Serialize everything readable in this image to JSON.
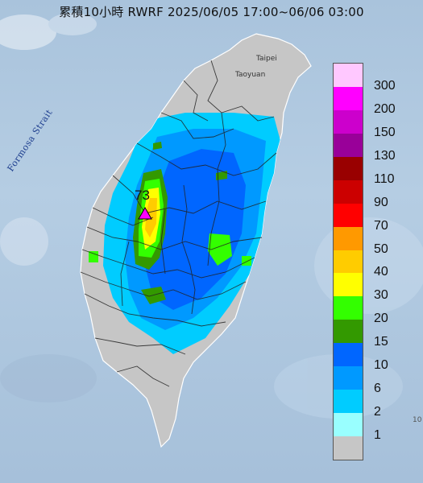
{
  "title": "累積10小時 RWRF 2025/06/05 17:00~06/06 03:00",
  "labels": {
    "strait": "Formosa Strait",
    "taipei": "Taipei",
    "taoyuan": "Taoyuan",
    "max_value": "73",
    "edge_mark": "10"
  },
  "legend": {
    "unit_levels": [
      {
        "label": "300",
        "color": "#ffc8ff"
      },
      {
        "label": "200",
        "color": "#ff00ff"
      },
      {
        "label": "150",
        "color": "#cc00cc"
      },
      {
        "label": "130",
        "color": "#990099"
      },
      {
        "label": "110",
        "color": "#990000"
      },
      {
        "label": "90",
        "color": "#cc0000"
      },
      {
        "label": "70",
        "color": "#ff0000"
      },
      {
        "label": "50",
        "color": "#ff9900"
      },
      {
        "label": "40",
        "color": "#ffcc00"
      },
      {
        "label": "30",
        "color": "#ffff00"
      },
      {
        "label": "20",
        "color": "#33ff00"
      },
      {
        "label": "15",
        "color": "#339900"
      },
      {
        "label": "10",
        "color": "#0066ff"
      },
      {
        "label": "6",
        "color": "#0099ff"
      },
      {
        "label": "2",
        "color": "#00ccff"
      },
      {
        "label": "1",
        "color": "#99ffff"
      },
      {
        "label": "",
        "color": "#c6c6c6"
      }
    ]
  },
  "colors": {
    "land_no_rain": "#c6c6c6",
    "sea": "#aac4dc",
    "border": "#222222",
    "max_marker": "#ff00ff"
  }
}
